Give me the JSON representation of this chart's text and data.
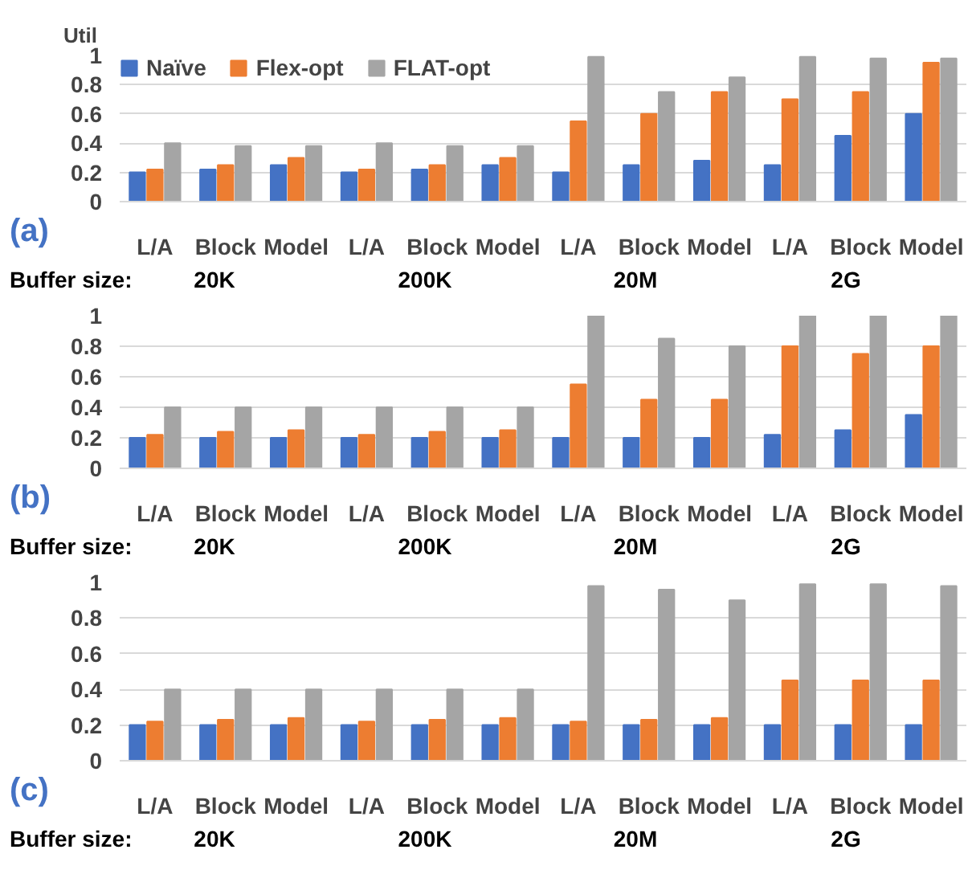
{
  "chart_data": [
    {
      "type": "bar",
      "ylabel": "Util",
      "categories": [
        "L/A",
        "Block",
        "Model",
        "L/A",
        "Block",
        "Model",
        "L/A",
        "Block",
        "Model",
        "L/A",
        "Block",
        "Model"
      ],
      "series": [
        {
          "name": "Naïve",
          "color": "#4472c4",
          "values": [
            0.2,
            0.22,
            0.25,
            0.2,
            0.22,
            0.25,
            0.2,
            0.25,
            0.28,
            0.25,
            0.45,
            0.6
          ]
        },
        {
          "name": "Flex-opt",
          "color": "#ed7d31",
          "values": [
            0.22,
            0.25,
            0.3,
            0.22,
            0.25,
            0.3,
            0.55,
            0.6,
            0.75,
            0.7,
            0.75,
            0.95
          ]
        },
        {
          "name": "FLAT-opt",
          "color": "#a5a5a5",
          "values": [
            0.4,
            0.38,
            0.38,
            0.4,
            0.38,
            0.38,
            0.99,
            0.75,
            0.85,
            0.99,
            0.98,
            0.98
          ]
        }
      ],
      "ylim": [
        0,
        1
      ],
      "yticks": [
        0,
        0.2,
        0.4,
        0.6,
        0.8,
        1
      ],
      "grid": "y",
      "legend": "top left",
      "annotations": [
        "(a)",
        "Buffer size:",
        "20K",
        "200K",
        "20M",
        "2G"
      ]
    },
    {
      "type": "bar",
      "categories": [
        "L/A",
        "Block",
        "Model",
        "L/A",
        "Block",
        "Model",
        "L/A",
        "Block",
        "Model",
        "L/A",
        "Block",
        "Model"
      ],
      "series": [
        {
          "color": "#4472c4",
          "values": [
            0.2,
            0.2,
            0.2,
            0.2,
            0.2,
            0.2,
            0.2,
            0.2,
            0.2,
            0.22,
            0.25,
            0.35
          ]
        },
        {
          "color": "#ed7d31",
          "values": [
            0.22,
            0.24,
            0.25,
            0.22,
            0.24,
            0.25,
            0.55,
            0.45,
            0.45,
            0.8,
            0.75,
            0.8
          ]
        },
        {
          "color": "#a5a5a5",
          "values": [
            0.4,
            0.4,
            0.4,
            0.4,
            0.4,
            0.4,
            1,
            0.85,
            0.8,
            1,
            1,
            1
          ]
        }
      ],
      "ylim": [
        0,
        1
      ],
      "yticks": [
        0,
        0.2,
        0.4,
        0.6,
        0.8,
        1
      ],
      "grid": "y",
      "annotations": [
        "(b)",
        "Buffer size:",
        "20K",
        "200K",
        "20M",
        "2G"
      ]
    },
    {
      "type": "bar",
      "categories": [
        "L/A",
        "Block",
        "Model",
        "L/A",
        "Block",
        "Model",
        "L/A",
        "Block",
        "Model",
        "L/A",
        "Block",
        "Model"
      ],
      "series": [
        {
          "color": "#4472c4",
          "values": [
            0.2,
            0.2,
            0.2,
            0.2,
            0.2,
            0.2,
            0.2,
            0.2,
            0.2,
            0.2,
            0.2,
            0.2
          ]
        },
        {
          "color": "#ed7d31",
          "values": [
            0.22,
            0.23,
            0.24,
            0.22,
            0.23,
            0.24,
            0.22,
            0.23,
            0.24,
            0.45,
            0.45,
            0.45
          ]
        },
        {
          "color": "#a5a5a5",
          "values": [
            0.4,
            0.4,
            0.4,
            0.4,
            0.4,
            0.4,
            0.98,
            0.96,
            0.9,
            0.99,
            0.99,
            0.98
          ]
        }
      ],
      "ylim": [
        0,
        1
      ],
      "yticks": [
        0,
        0.2,
        0.4,
        0.6,
        0.8,
        1
      ],
      "grid": "y",
      "annotations": [
        "(c)",
        "Buffer size:",
        "20K",
        "200K",
        "20M",
        "2G"
      ]
    }
  ]
}
